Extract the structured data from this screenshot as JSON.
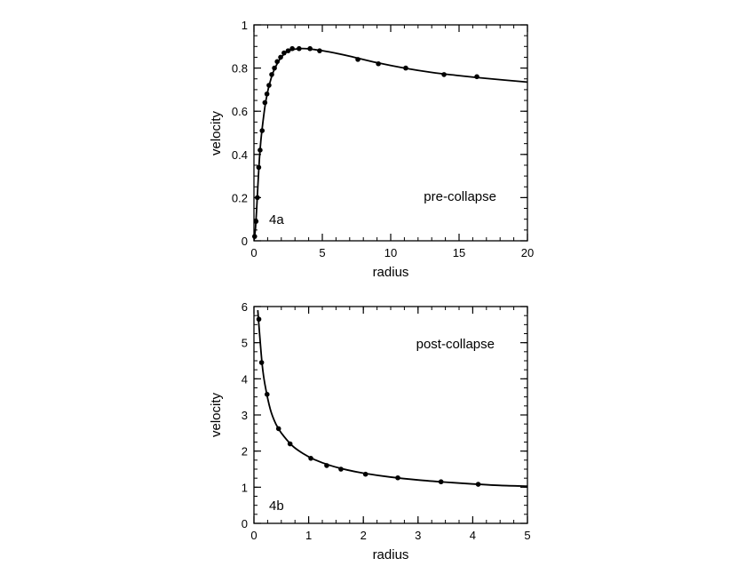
{
  "chart_data": [
    {
      "type": "scatter",
      "panel_label": "4a",
      "annotation": "pre-collapse",
      "xlabel": "radius",
      "ylabel": "velocity",
      "xlim": [
        0,
        20
      ],
      "ylim": [
        0,
        1
      ],
      "x_ticks": [
        0,
        5,
        10,
        15,
        20
      ],
      "x_tick_labels": [
        "0",
        "5",
        "10",
        "15",
        "20"
      ],
      "y_ticks": [
        0,
        0.2,
        0.4,
        0.6,
        0.8,
        1
      ],
      "y_tick_labels": [
        "0",
        "0.2",
        "0.4",
        "0.6",
        "0.8",
        "1"
      ],
      "x_minor_step": 1,
      "y_minor_step": 0.05,
      "grid": false,
      "series": [
        {
          "style": "points",
          "x": [
            0.05,
            0.15,
            0.25,
            0.35,
            0.45,
            0.6,
            0.8,
            0.95,
            1.1,
            1.3,
            1.5,
            1.7,
            1.95,
            2.2,
            2.5,
            2.8,
            3.3,
            4.1,
            4.8,
            7.6,
            9.1,
            11.1,
            13.9,
            16.3
          ],
          "y": [
            0.02,
            0.09,
            0.2,
            0.34,
            0.42,
            0.51,
            0.64,
            0.68,
            0.72,
            0.77,
            0.8,
            0.83,
            0.85,
            0.87,
            0.88,
            0.89,
            0.89,
            0.89,
            0.88,
            0.84,
            0.82,
            0.8,
            0.77,
            0.76
          ]
        },
        {
          "style": "line",
          "x": [
            0,
            0.1,
            0.2,
            0.3,
            0.4,
            0.5,
            0.6,
            0.8,
            1.0,
            1.2,
            1.4,
            1.7,
            2.0,
            2.4,
            2.8,
            3.3,
            3.8,
            4.5,
            5.5,
            7.0,
            9.0,
            11.0,
            13.0,
            15.0,
            17.0,
            20.0
          ],
          "y": [
            0,
            0.05,
            0.15,
            0.27,
            0.38,
            0.46,
            0.52,
            0.62,
            0.69,
            0.74,
            0.78,
            0.82,
            0.85,
            0.875,
            0.885,
            0.89,
            0.89,
            0.885,
            0.875,
            0.855,
            0.825,
            0.8,
            0.78,
            0.765,
            0.752,
            0.735
          ]
        }
      ]
    },
    {
      "type": "scatter",
      "panel_label": "4b",
      "annotation": "post-collapse",
      "xlabel": "radius",
      "ylabel": "velocity",
      "xlim": [
        0,
        5
      ],
      "ylim": [
        0,
        6
      ],
      "x_ticks": [
        0,
        1,
        2,
        3,
        4,
        5
      ],
      "x_tick_labels": [
        "0",
        "1",
        "2",
        "3",
        "4",
        "5"
      ],
      "y_ticks": [
        0,
        1,
        2,
        3,
        4,
        5,
        6
      ],
      "y_tick_labels": [
        "0",
        "1",
        "2",
        "3",
        "4",
        "5",
        "6"
      ],
      "x_minor_step": 0.25,
      "y_minor_step": 0.25,
      "grid": false,
      "series": [
        {
          "style": "points",
          "x": [
            0.09,
            0.14,
            0.24,
            0.45,
            0.66,
            1.04,
            1.33,
            1.59,
            2.04,
            2.63,
            3.42,
            4.1
          ],
          "y": [
            5.65,
            4.45,
            3.57,
            2.62,
            2.2,
            1.8,
            1.6,
            1.5,
            1.36,
            1.26,
            1.15,
            1.08
          ]
        },
        {
          "style": "line",
          "x": [
            0.07,
            0.1,
            0.15,
            0.2,
            0.3,
            0.4,
            0.5,
            0.7,
            0.9,
            1.1,
            1.4,
            1.7,
            2.0,
            2.5,
            3.0,
            3.5,
            4.0,
            4.5,
            5.0
          ],
          "y": [
            5.9,
            5.3,
            4.4,
            3.85,
            3.15,
            2.75,
            2.5,
            2.15,
            1.93,
            1.77,
            1.6,
            1.48,
            1.39,
            1.28,
            1.2,
            1.14,
            1.09,
            1.05,
            1.03
          ]
        }
      ]
    }
  ]
}
